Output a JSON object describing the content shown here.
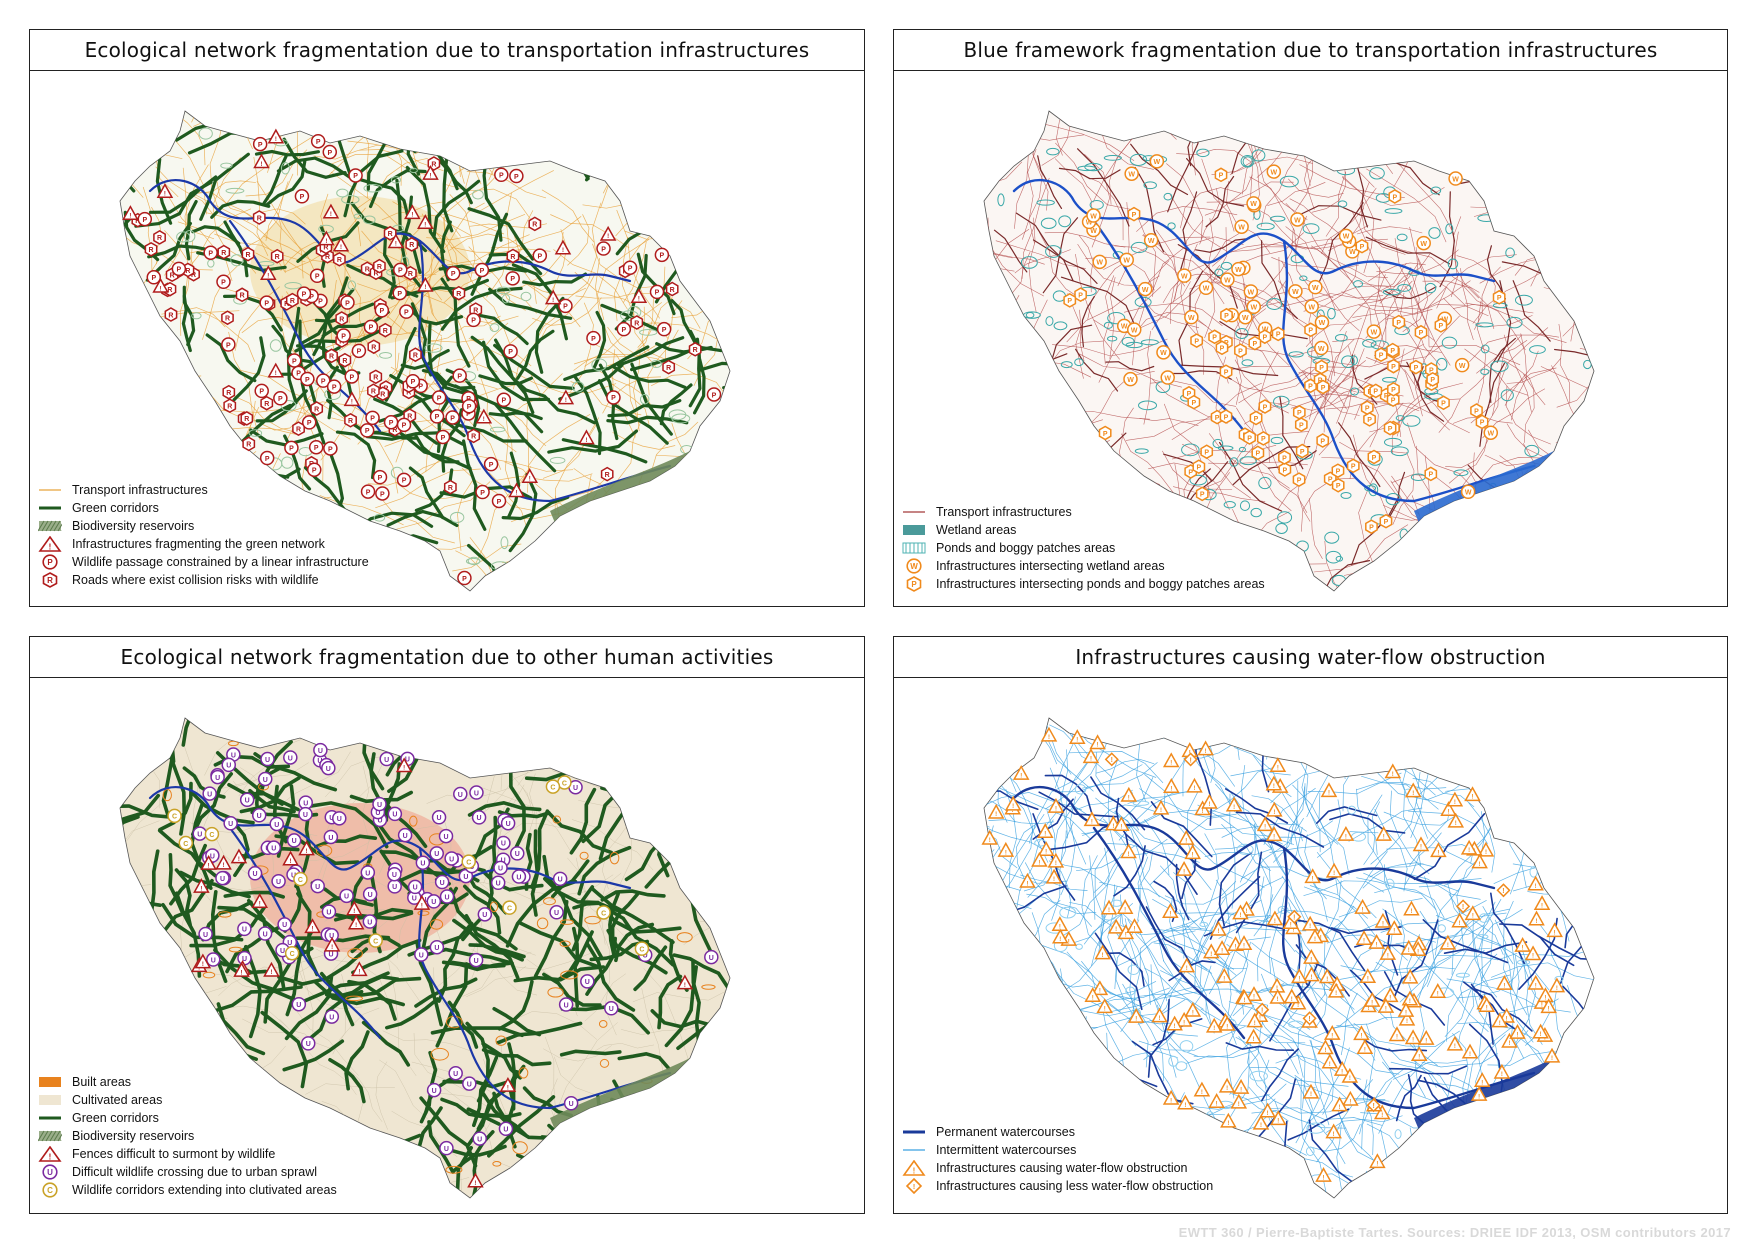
{
  "panels": [
    {
      "id": "eco-transport",
      "title": "Ecological network fragmentation due to transportation infrastructures",
      "legend": [
        {
          "type": "line",
          "color": "#e8a33c",
          "label": "Transport infrastructures"
        },
        {
          "type": "thickline",
          "color": "#1f5a1f",
          "label": "Green corridors"
        },
        {
          "type": "hatch",
          "color": "#5a7a4a",
          "label": "Biodiversity reservoirs"
        },
        {
          "type": "triangle",
          "color": "#b01c1c",
          "label": "Infrastructures fragmenting the green network"
        },
        {
          "type": "circle",
          "color": "#b01c1c",
          "letter": "P",
          "label": "Wildlife passage constrained by a linear infrastructure"
        },
        {
          "type": "hexagon",
          "color": "#b01c1c",
          "letter": "R",
          "label": "Roads where exist collision risks with wildlife"
        }
      ]
    },
    {
      "id": "blue-transport",
      "title": "Blue framework fragmentation due to transportation infrastructures",
      "legend": [
        {
          "type": "line",
          "color": "#a33a3a",
          "label": "Transport infrastructures"
        },
        {
          "type": "fill",
          "color": "#4a9a9a",
          "label": "Wetland areas"
        },
        {
          "type": "stripes",
          "color": "#4fb3b3",
          "label": "Ponds and boggy patches areas"
        },
        {
          "type": "circle",
          "color": "#f08a1c",
          "letter": "W",
          "label": "Infrastructures intersecting wetland areas"
        },
        {
          "type": "hexagon",
          "color": "#f08a1c",
          "letter": "P",
          "label": "Infrastructures intersecting ponds and boggy patches areas"
        }
      ]
    },
    {
      "id": "eco-human",
      "title": "Ecological network fragmentation due to other human activities",
      "legend": [
        {
          "type": "fill",
          "color": "#e8821e",
          "label": "Built areas"
        },
        {
          "type": "fill",
          "color": "#efe6d2",
          "label": "Cultivated areas"
        },
        {
          "type": "thickline",
          "color": "#1f5a1f",
          "label": "Green corridors"
        },
        {
          "type": "hatch",
          "color": "#5a7a4a",
          "label": "Biodiversity reservoirs"
        },
        {
          "type": "triangle",
          "color": "#b01c1c",
          "label": "Fences difficult to surmont by wildlife"
        },
        {
          "type": "circle",
          "color": "#7a2aa0",
          "letter": "U",
          "label": "Difficult wildlife crossing due to urban sprawl"
        },
        {
          "type": "circle",
          "color": "#c9a227",
          "letter": "C",
          "label": "Wildlife corridors extending into clutivated areas"
        }
      ]
    },
    {
      "id": "water-flow",
      "title": "Infrastructures causing water-flow obstruction",
      "legend": [
        {
          "type": "thickline",
          "color": "#1a3a9a",
          "label": "Permanent watercourses"
        },
        {
          "type": "line",
          "color": "#3aa0e0",
          "label": "Intermittent watercourses"
        },
        {
          "type": "triangle",
          "color": "#f08a1c",
          "label": "Infrastructures causing water-flow obstruction"
        },
        {
          "type": "diamond",
          "color": "#f08a1c",
          "label": "Infrastructures causing less water-flow obstruction"
        }
      ]
    }
  ],
  "credits": "EWTT 360 / Pierre-Baptiste Tartes. Sources: DRIEE IDF 2013, OSM contributors 2017"
}
